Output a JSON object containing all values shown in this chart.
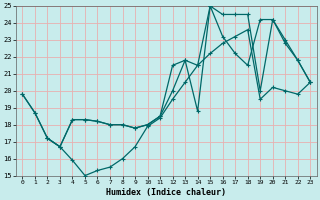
{
  "xlabel": "Humidex (Indice chaleur)",
  "bg_color": "#c8ecec",
  "grid_color": "#e8b0b0",
  "line_color": "#006868",
  "xlim_min": -0.5,
  "xlim_max": 23.5,
  "ylim_min": 15,
  "ylim_max": 25,
  "xticks": [
    0,
    1,
    2,
    3,
    4,
    5,
    6,
    7,
    8,
    9,
    10,
    11,
    12,
    13,
    14,
    15,
    16,
    17,
    18,
    19,
    20,
    21,
    22,
    23
  ],
  "yticks": [
    15,
    16,
    17,
    18,
    19,
    20,
    21,
    22,
    23,
    24,
    25
  ],
  "line1_x": [
    0,
    1,
    2,
    3,
    4,
    5,
    6,
    7,
    8,
    9,
    10,
    11,
    12,
    13,
    14,
    15,
    16,
    17,
    18,
    19,
    20,
    21,
    22,
    23
  ],
  "line1_y": [
    19.8,
    18.7,
    17.2,
    16.7,
    15.9,
    15.0,
    15.3,
    15.5,
    16.0,
    16.7,
    17.9,
    18.4,
    19.5,
    20.5,
    21.5,
    22.2,
    22.8,
    23.2,
    23.6,
    19.5,
    20.2,
    20.0,
    19.8,
    20.5
  ],
  "line2_x": [
    0,
    1,
    2,
    3,
    4,
    5,
    6,
    7,
    8,
    9,
    10,
    11,
    12,
    13,
    14,
    15,
    16,
    17,
    18,
    19,
    20,
    21,
    22,
    23
  ],
  "line2_y": [
    19.8,
    18.7,
    17.2,
    16.7,
    18.3,
    18.3,
    18.2,
    18.0,
    18.0,
    17.8,
    18.0,
    18.5,
    21.5,
    21.8,
    18.8,
    25.0,
    23.2,
    22.2,
    21.5,
    24.2,
    24.2,
    23.0,
    21.8,
    20.5
  ],
  "line3_x": [
    2,
    3,
    4,
    5,
    6,
    7,
    8,
    9,
    10,
    11,
    12,
    13,
    14,
    15,
    16,
    17,
    18,
    19,
    20,
    21,
    22,
    23
  ],
  "line3_y": [
    17.2,
    16.7,
    18.3,
    18.3,
    18.2,
    18.0,
    18.0,
    17.8,
    18.0,
    18.5,
    20.0,
    21.8,
    21.5,
    25.0,
    24.5,
    24.5,
    24.5,
    20.0,
    24.2,
    22.8,
    21.8,
    20.5
  ]
}
